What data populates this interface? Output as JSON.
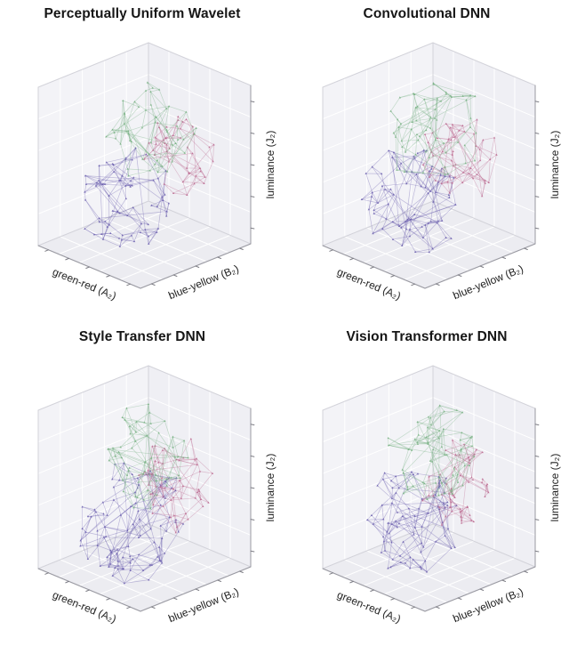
{
  "figure": {
    "background": "#ffffff",
    "layout": "2x2 grid of 3D wireframe scatter plots"
  },
  "chart_data": [
    {
      "type": "scatter",
      "projection": "3d",
      "title": "Perceptually Uniform Wavelet",
      "xlabel": "green-red (A₂)",
      "ylabel": "blue-yellow (B₂)",
      "zlabel": "luminance (J₂)",
      "axes": {
        "grid": true,
        "ticks_per_axis": 5,
        "pane_color": "#f2f2f6",
        "grid_color": "#ffffff"
      },
      "series": [
        {
          "name": "green mesh",
          "color": "#79b284",
          "center": [
            0.44,
            0.5,
            0.74
          ],
          "radius": 0.32,
          "points": 52,
          "seed": 11
        },
        {
          "name": "purple mesh",
          "color": "#6b5fae",
          "center": [
            0.46,
            0.28,
            0.36
          ],
          "radius": 0.33,
          "points": 70,
          "seed": 12
        },
        {
          "name": "pink mesh",
          "color": "#bd6d93",
          "center": [
            0.5,
            0.82,
            0.48
          ],
          "radius": 0.26,
          "points": 44,
          "seed": 13
        }
      ]
    },
    {
      "type": "scatter",
      "projection": "3d",
      "title": "Convolutional DNN",
      "xlabel": "green-red (A₂)",
      "ylabel": "blue-yellow (B₂)",
      "zlabel": "luminance (J₂)",
      "axes": {
        "grid": true,
        "ticks_per_axis": 5,
        "pane_color": "#f2f2f6",
        "grid_color": "#ffffff"
      },
      "series": [
        {
          "name": "green mesh",
          "color": "#79b284",
          "center": [
            0.46,
            0.52,
            0.72
          ],
          "radius": 0.34,
          "points": 58,
          "seed": 21
        },
        {
          "name": "purple mesh",
          "color": "#6b5fae",
          "center": [
            0.47,
            0.32,
            0.34
          ],
          "radius": 0.35,
          "points": 76,
          "seed": 22
        },
        {
          "name": "pink mesh",
          "color": "#bd6d93",
          "center": [
            0.52,
            0.8,
            0.46
          ],
          "radius": 0.28,
          "points": 50,
          "seed": 23
        }
      ]
    },
    {
      "type": "scatter",
      "projection": "3d",
      "title": "Style Transfer DNN",
      "xlabel": "green-red (A₂)",
      "ylabel": "blue-yellow (B₂)",
      "zlabel": "luminance (J₂)",
      "axes": {
        "grid": true,
        "ticks_per_axis": 5,
        "pane_color": "#f2f2f6",
        "grid_color": "#ffffff"
      },
      "series": [
        {
          "name": "green mesh",
          "color": "#79b284",
          "center": [
            0.45,
            0.5,
            0.73
          ],
          "radius": 0.33,
          "points": 55,
          "seed": 31
        },
        {
          "name": "purple mesh",
          "color": "#6b5fae",
          "center": [
            0.48,
            0.36,
            0.33
          ],
          "radius": 0.4,
          "points": 95,
          "seed": 32
        },
        {
          "name": "pink mesh",
          "color": "#bd6d93",
          "center": [
            0.52,
            0.78,
            0.44
          ],
          "radius": 0.3,
          "points": 50,
          "seed": 33
        }
      ]
    },
    {
      "type": "scatter",
      "projection": "3d",
      "title": "Vision Transformer DNN",
      "xlabel": "green-red (A₂)",
      "ylabel": "blue-yellow (B₂)",
      "zlabel": "luminance (J₂)",
      "axes": {
        "grid": true,
        "ticks_per_axis": 5,
        "pane_color": "#f2f2f6",
        "grid_color": "#ffffff"
      },
      "series": [
        {
          "name": "green mesh",
          "color": "#79b284",
          "center": [
            0.46,
            0.52,
            0.72
          ],
          "radius": 0.34,
          "points": 60,
          "seed": 41
        },
        {
          "name": "purple mesh",
          "color": "#6b5fae",
          "center": [
            0.47,
            0.33,
            0.35
          ],
          "radius": 0.36,
          "points": 80,
          "seed": 42
        },
        {
          "name": "pink mesh",
          "color": "#bd6d93",
          "center": [
            0.53,
            0.8,
            0.45
          ],
          "radius": 0.28,
          "points": 52,
          "seed": 43
        }
      ]
    }
  ]
}
